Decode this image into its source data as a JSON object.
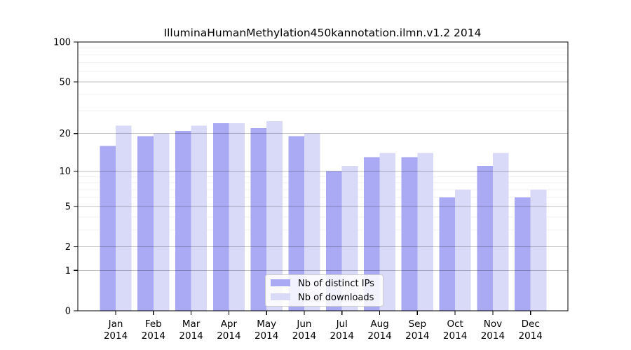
{
  "chart_data": {
    "type": "bar",
    "title": "IlluminaHumanMethylation450kannotation.ilmn.v1.2 2014",
    "categories": [
      "Jan",
      "Feb",
      "Mar",
      "Apr",
      "May",
      "Jun",
      "Jul",
      "Aug",
      "Sep",
      "Oct",
      "Nov",
      "Dec"
    ],
    "year": "2014",
    "series": [
      {
        "name": "Nb of distinct IPs",
        "color": "#a9a9f4",
        "values": [
          16,
          19,
          21,
          24,
          22,
          19,
          10,
          13,
          13,
          6,
          11,
          6
        ]
      },
      {
        "name": "Nb of downloads",
        "color": "#d9d9f8",
        "values": [
          23,
          20,
          23,
          24,
          25,
          20,
          11,
          14,
          14,
          7,
          14,
          7
        ]
      }
    ],
    "xlabel": "",
    "ylabel": "",
    "yscale": "log1p",
    "ylim": [
      0,
      100
    ],
    "yticks": [
      0,
      1,
      2,
      5,
      10,
      20,
      50,
      100
    ],
    "minor_gridlines": [
      3,
      4,
      6,
      7,
      8,
      9,
      30,
      40,
      60,
      70,
      80,
      90
    ],
    "grid": "on, drawn above bars",
    "legend_position": "bottom-center",
    "colors": {
      "major_grid": "rgba(0,0,0,0.25)",
      "minor_grid": "rgba(0,0,0,0.05)",
      "axis": "#000000",
      "legend_border": "#cccccc",
      "legend_background": "rgba(255,255,255,0.85)"
    }
  }
}
